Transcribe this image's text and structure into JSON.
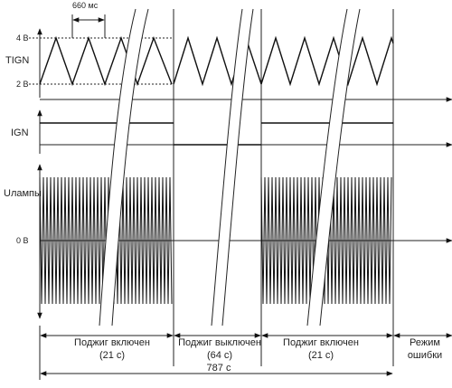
{
  "signals": {
    "tign": "TIGN",
    "ign": "IGN",
    "ulamp": "Uлампы"
  },
  "levels": {
    "high": "4 В",
    "low": "2 В",
    "zero": "0 В"
  },
  "period_label": "660 мс",
  "phases": [
    {
      "line1": "Поджиг включен",
      "line2": "(21 с)"
    },
    {
      "line1": "Поджиг выключен",
      "line2": "(64 с)"
    },
    {
      "line1": "Поджиг включен",
      "line2": "(21 с)"
    },
    {
      "line1": "Режим",
      "line2": "ошибки"
    }
  ],
  "total_label": "787 с"
}
